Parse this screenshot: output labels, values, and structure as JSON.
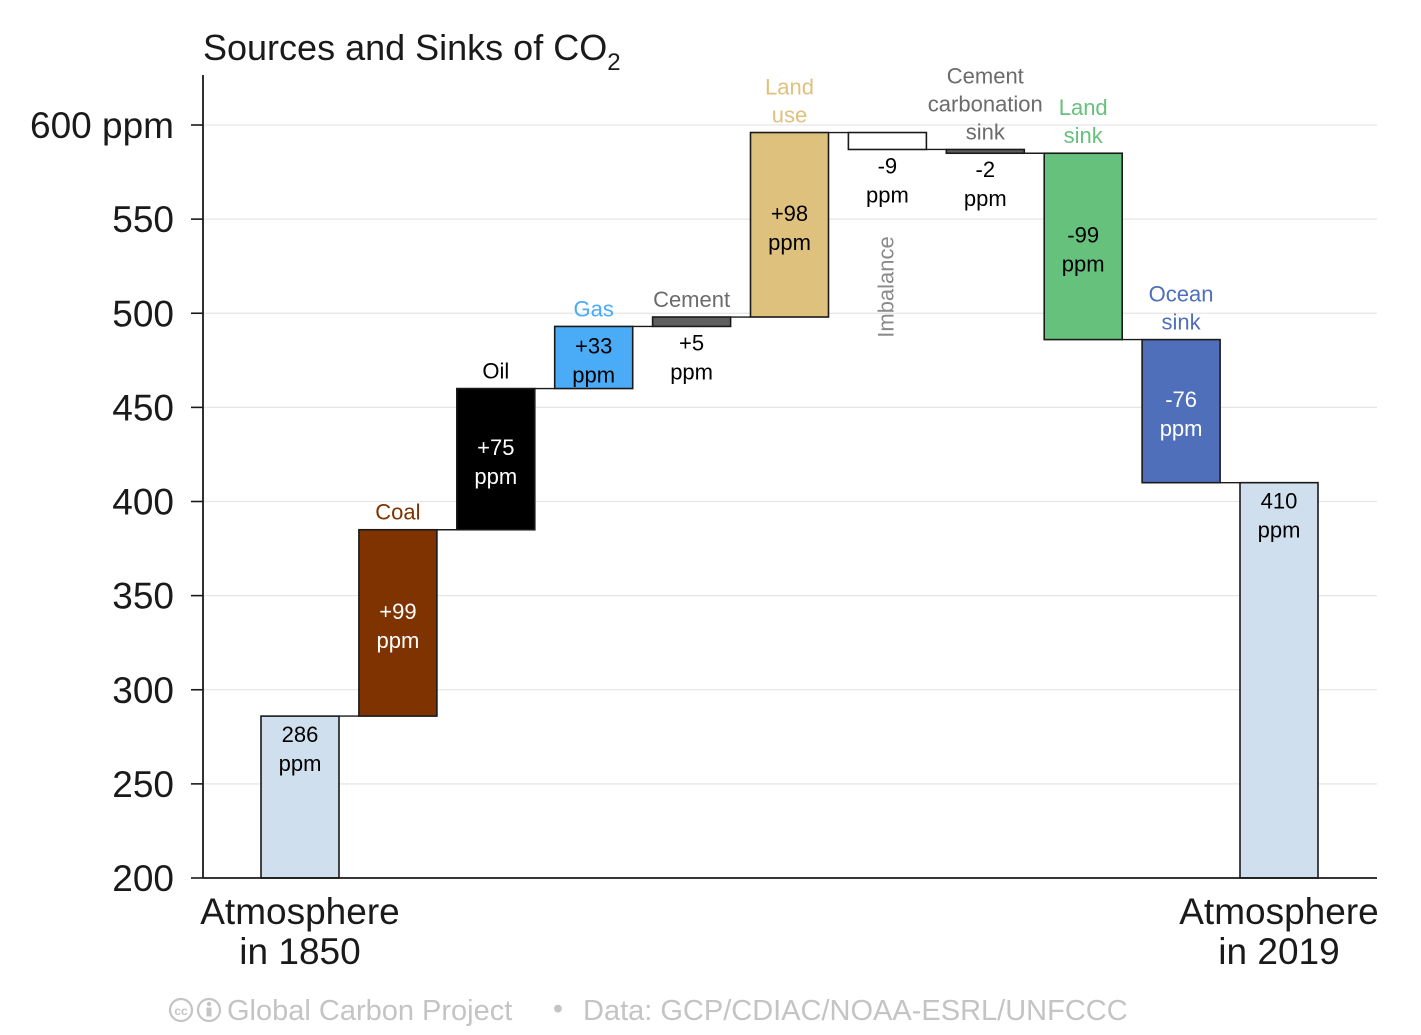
{
  "chart_data": {
    "type": "bar",
    "subtype": "waterfall",
    "title": "Sources and Sinks of CO",
    "title_subscript": "2",
    "xlabel": "",
    "ylabel": "",
    "ylim": [
      200,
      630
    ],
    "yticks": [
      200,
      250,
      300,
      350,
      400,
      450,
      500,
      550,
      600
    ],
    "ytick_labels": [
      "200",
      "250",
      "300",
      "350",
      "400",
      "450",
      "500",
      "550",
      "600 ppm"
    ],
    "grid": true,
    "x_labels": [
      {
        "index": 0,
        "lines": [
          "Atmosphere",
          "in 1850"
        ]
      },
      {
        "index": 10,
        "lines": [
          "Atmosphere",
          "in 2019"
        ]
      }
    ],
    "bars": [
      {
        "name": "Atmosphere in 1850",
        "kind": "total",
        "value": 286,
        "value_label": [
          "286",
          "ppm"
        ],
        "category_label": [],
        "color": "#cfdfed",
        "label_color": "#000000",
        "label_color_cat": "#000000"
      },
      {
        "name": "Coal",
        "kind": "delta",
        "value": 99,
        "value_label": [
          "+99",
          "ppm"
        ],
        "category_label": [
          "Coal"
        ],
        "color": "#7f3300",
        "label_color": "#ffffff",
        "label_color_cat": "#7f3300"
      },
      {
        "name": "Oil",
        "kind": "delta",
        "value": 75,
        "value_label": [
          "+75",
          "ppm"
        ],
        "category_label": [
          "Oil"
        ],
        "color": "#000000",
        "label_color": "#ffffff",
        "label_color_cat": "#000000"
      },
      {
        "name": "Gas",
        "kind": "delta",
        "value": 33,
        "value_label": [
          "+33",
          "ppm"
        ],
        "category_label": [
          "Gas"
        ],
        "color": "#4aabf7",
        "label_color": "#000000",
        "label_color_cat": "#4aabf7"
      },
      {
        "name": "Cement",
        "kind": "delta",
        "value": 5,
        "value_label": [
          "+5",
          "ppm"
        ],
        "category_label": [
          "Cement"
        ],
        "color": "#5f5f5f",
        "label_color": "#000000",
        "label_color_cat": "#6b6b6b"
      },
      {
        "name": "Land use",
        "kind": "delta",
        "value": 98,
        "value_label": [
          "+98",
          "ppm"
        ],
        "category_label": [
          "Land",
          "use"
        ],
        "color": "#dfc17e",
        "label_color": "#000000",
        "label_color_cat": "#dfc17e"
      },
      {
        "name": "Imbalance",
        "kind": "delta",
        "value": -9,
        "value_label": [
          "-9",
          "ppm"
        ],
        "category_label": [
          "Imbalance"
        ],
        "color": "#ffffff",
        "label_color": "#000000",
        "label_color_cat": "#8a8a8a"
      },
      {
        "name": "Cement carbonation sink",
        "kind": "delta",
        "value": -2,
        "value_label": [
          "-2",
          "ppm"
        ],
        "category_label": [
          "Cement",
          "carbonation",
          "sink"
        ],
        "color": "#5f5f5f",
        "label_color": "#000000",
        "label_color_cat": "#6b6b6b"
      },
      {
        "name": "Land sink",
        "kind": "delta",
        "value": -99,
        "value_label": [
          "-99",
          "ppm"
        ],
        "category_label": [
          "Land",
          "sink"
        ],
        "color": "#65c17b",
        "label_color": "#000000",
        "label_color_cat": "#65c17b"
      },
      {
        "name": "Ocean sink",
        "kind": "delta",
        "value": -76,
        "value_label": [
          "-76",
          "ppm"
        ],
        "category_label": [
          "Ocean",
          "sink"
        ],
        "color": "#4f6fba",
        "label_color": "#ffffff",
        "label_color_cat": "#4f6fba"
      },
      {
        "name": "Atmosphere in 2019",
        "kind": "total",
        "value": 410,
        "value_label": [
          "410",
          "ppm"
        ],
        "category_label": [],
        "color": "#cfdfed",
        "label_color": "#000000",
        "label_color_cat": "#000000"
      }
    ]
  },
  "footer": {
    "license_icons": [
      "cc-icon",
      "attribution-icon"
    ],
    "credit": "Global Carbon Project",
    "separator": "•",
    "source": "Data: GCP/CDIAC/NOAA-ESRL/UNFCCC"
  }
}
